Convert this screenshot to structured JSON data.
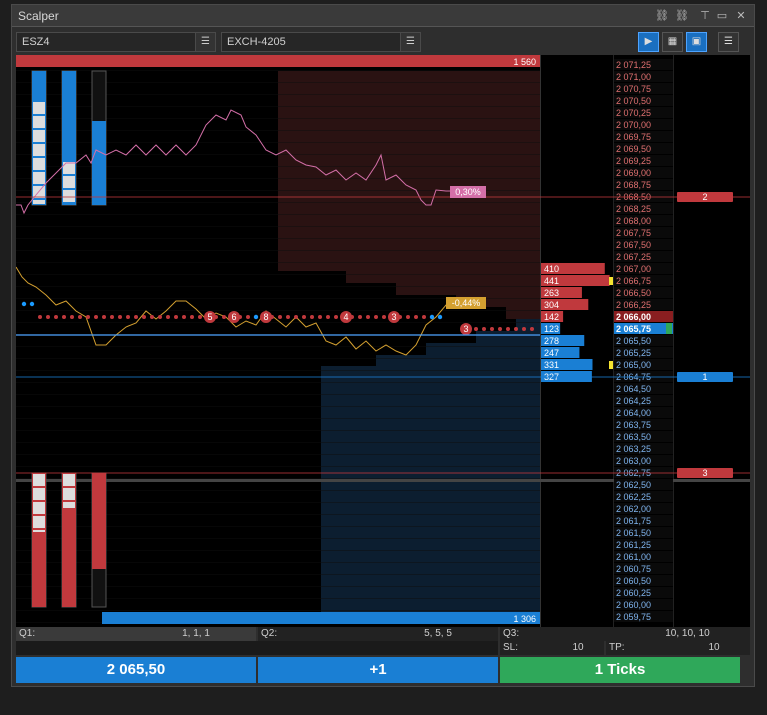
{
  "window": {
    "title": "Scalper"
  },
  "toolbar": {
    "instrument": "ESZ4",
    "account": "EXCH-4205",
    "menu_icon": "list-icon",
    "tools": [
      "auto-center-icon",
      "dom-icon",
      "save-icon",
      "settings-menu-icon"
    ]
  },
  "colors": {
    "bid": "#1a7fd4",
    "ask": "#c0393d",
    "profit": "#2fa85a",
    "price_text": "#e8e8e8",
    "line": "#d46fa8",
    "trade_line": "#d4a030"
  },
  "chart_data": {
    "type": "line",
    "price_ladder": [
      "2 071,25",
      "2 071,00",
      "2 070,75",
      "2 070,50",
      "2 070,25",
      "2 070,00",
      "2 069,75",
      "2 069,50",
      "2 069,25",
      "2 069,00",
      "2 068,75",
      "2 068,50",
      "2 068,25",
      "2 068,00",
      "2 067,75",
      "2 067,50",
      "2 067,25",
      "2 067,00",
      "2 066,75",
      "2 066,50",
      "2 066,25",
      "2 066,00",
      "2 065,75",
      "2 065,50",
      "2 065,25",
      "2 065,00",
      "2 064,75",
      "2 064,50",
      "2 064,25",
      "2 064,00",
      "2 063,75",
      "2 063,50",
      "2 063,25",
      "2 063,00",
      "2 062,75",
      "2 062,50",
      "2 062,25",
      "2 062,00",
      "2 061,75",
      "2 061,50",
      "2 061,25",
      "2 061,00",
      "2 060,75",
      "2 060,50",
      "2 060,25",
      "2 060,00",
      "2 059,75"
    ],
    "ask_volumes": {
      "2 067,00": "410",
      "2 066,75": "441",
      "2 066,50": "263",
      "2 066,25": "304",
      "2 066,00": "142"
    },
    "bid_volumes": {
      "2 065,75": "123",
      "2 065,50": "278",
      "2 065,25": "247",
      "2 065,00": "331",
      "2 064,75": "327"
    },
    "best_ask": "2 066,00",
    "best_bid": "2 065,75",
    "total_ask": "1 560",
    "total_bid": "1 306",
    "upper_pct": "0,30%",
    "middle_pct": "-0,44%",
    "trade_bubbles": [
      "5",
      "6",
      "8",
      "4",
      "3",
      "3"
    ],
    "orders": [
      {
        "label": "2",
        "price": "2 068,50",
        "side": "ask"
      },
      {
        "label": "1",
        "price": "2 064,75",
        "side": "bid"
      },
      {
        "label": "3",
        "price": "2 062,75",
        "side": "ask"
      }
    ]
  },
  "status": {
    "q1_label": "Q1:",
    "q1_value": "1, 1, 1",
    "q2_label": "Q2:",
    "q2_value": "5, 5, 5",
    "q3_label": "Q3:",
    "q3_value": "10, 10, 10",
    "sl_label": "SL:",
    "sl_value": "10",
    "tp_label": "TP:",
    "tp_value": "10"
  },
  "bottom": {
    "price_button": "2 065,50",
    "qty_button": "+1",
    "ticks_button": "1 Ticks"
  }
}
